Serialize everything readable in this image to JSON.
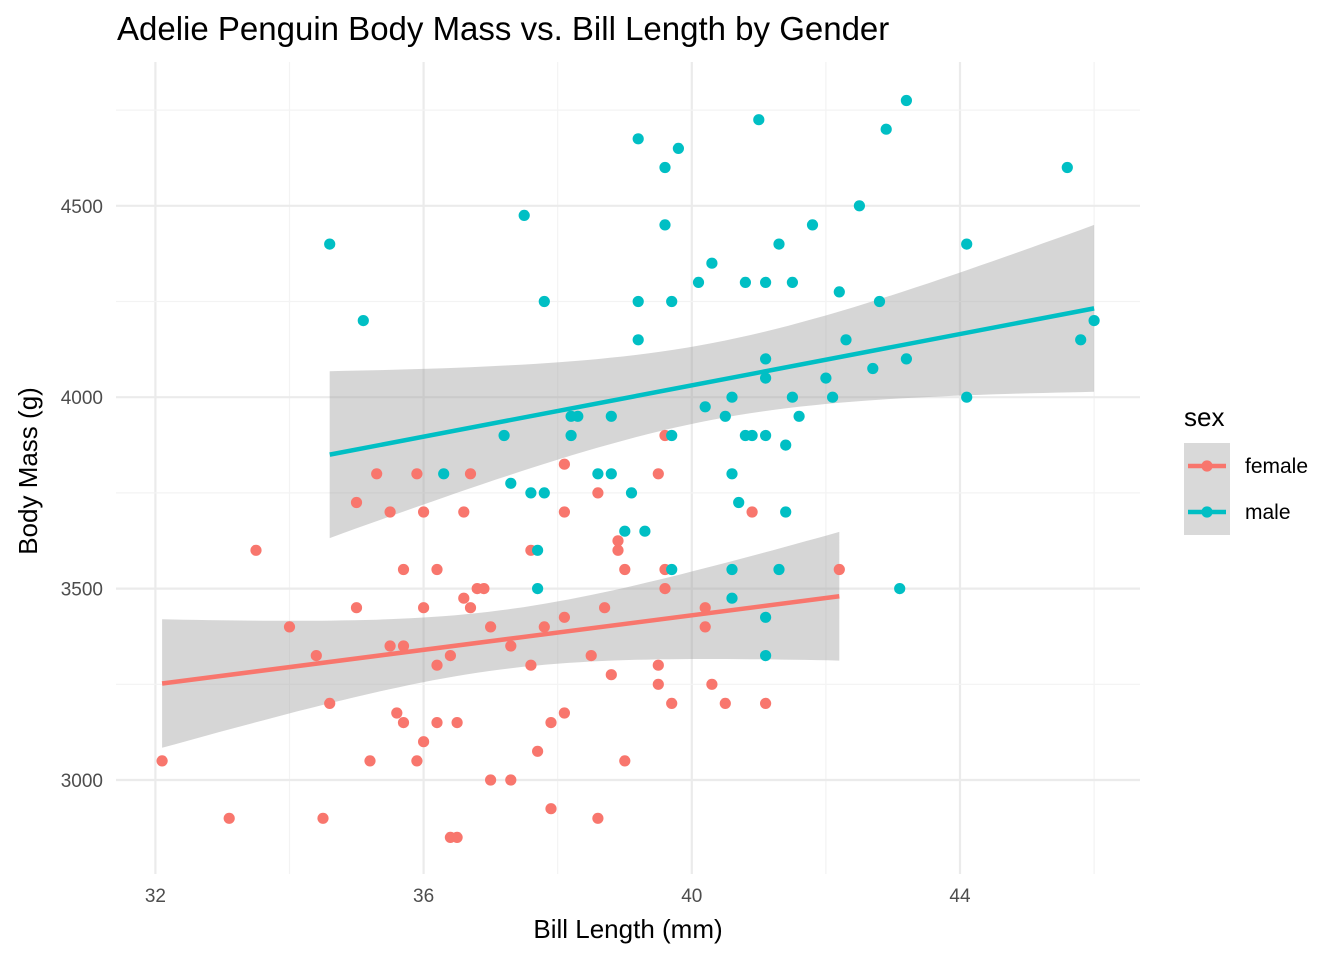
{
  "chart_data": {
    "type": "scatter",
    "title": "Adelie Penguin Body Mass vs. Bill Length by Gender",
    "xlabel": "Bill Length (mm)",
    "ylabel": "Body Mass (g)",
    "xlim": [
      31.9,
      46.6
    ],
    "ylim": [
      2770,
      4820
    ],
    "x_ticks": [
      32,
      36,
      40,
      44
    ],
    "y_ticks": [
      3000,
      3500,
      4000,
      4500
    ],
    "grid": true,
    "legend": {
      "title": "sex",
      "position": "right"
    },
    "series": [
      {
        "name": "female",
        "color": "#F8766D",
        "points": [
          [
            32.1,
            3050
          ],
          [
            33.1,
            2900
          ],
          [
            33.5,
            3600
          ],
          [
            34.0,
            3400
          ],
          [
            34.4,
            3325
          ],
          [
            34.5,
            2900
          ],
          [
            34.6,
            3200
          ],
          [
            35.0,
            3725
          ],
          [
            35.0,
            3450
          ],
          [
            35.2,
            3050
          ],
          [
            35.3,
            3800
          ],
          [
            35.5,
            3700
          ],
          [
            35.5,
            3350
          ],
          [
            35.6,
            3175
          ],
          [
            35.7,
            3550
          ],
          [
            35.7,
            3350
          ],
          [
            35.7,
            3150
          ],
          [
            35.9,
            3800
          ],
          [
            35.9,
            3050
          ],
          [
            36.0,
            3700
          ],
          [
            36.0,
            3450
          ],
          [
            36.0,
            3100
          ],
          [
            36.2,
            3550
          ],
          [
            36.2,
            3300
          ],
          [
            36.2,
            3150
          ],
          [
            36.4,
            3325
          ],
          [
            36.4,
            2850
          ],
          [
            36.5,
            2850
          ],
          [
            36.5,
            3150
          ],
          [
            36.6,
            3700
          ],
          [
            36.6,
            3475
          ],
          [
            36.7,
            3800
          ],
          [
            36.7,
            3450
          ],
          [
            36.8,
            3500
          ],
          [
            36.9,
            3500
          ],
          [
            37.0,
            3400
          ],
          [
            37.0,
            3000
          ],
          [
            37.3,
            3350
          ],
          [
            37.3,
            3000
          ],
          [
            37.6,
            3600
          ],
          [
            37.6,
            3300
          ],
          [
            37.7,
            3075
          ],
          [
            37.8,
            3400
          ],
          [
            37.9,
            3150
          ],
          [
            37.9,
            2925
          ],
          [
            38.1,
            3825
          ],
          [
            38.1,
            3700
          ],
          [
            38.1,
            3425
          ],
          [
            38.1,
            3175
          ],
          [
            38.5,
            3325
          ],
          [
            38.6,
            3750
          ],
          [
            38.6,
            2900
          ],
          [
            38.7,
            3450
          ],
          [
            38.8,
            3275
          ],
          [
            38.9,
            3625
          ],
          [
            38.9,
            3600
          ],
          [
            39.0,
            3550
          ],
          [
            39.0,
            3050
          ],
          [
            39.5,
            3800
          ],
          [
            39.5,
            3300
          ],
          [
            39.5,
            3250
          ],
          [
            39.6,
            3900
          ],
          [
            39.6,
            3550
          ],
          [
            39.6,
            3500
          ],
          [
            39.7,
            3200
          ],
          [
            40.2,
            3450
          ],
          [
            40.2,
            3400
          ],
          [
            40.3,
            3250
          ],
          [
            40.5,
            3200
          ],
          [
            40.9,
            3700
          ],
          [
            41.1,
            3200
          ],
          [
            42.2,
            3550
          ]
        ],
        "fit": {
          "x": [
            32.1,
            42.2
          ],
          "y": [
            3252,
            3480
          ],
          "ci_lower": [
            3085,
            3318
          ],
          "ci_upper": [
            3420,
            3645
          ]
        }
      },
      {
        "name": "male",
        "color": "#00BFC4",
        "points": [
          [
            34.6,
            4400
          ],
          [
            35.1,
            4200
          ],
          [
            36.3,
            3800
          ],
          [
            37.2,
            3900
          ],
          [
            37.3,
            3775
          ],
          [
            37.5,
            4475
          ],
          [
            37.6,
            3750
          ],
          [
            37.7,
            3600
          ],
          [
            37.7,
            3500
          ],
          [
            37.8,
            4250
          ],
          [
            37.8,
            3750
          ],
          [
            38.2,
            3950
          ],
          [
            38.2,
            3900
          ],
          [
            38.3,
            3950
          ],
          [
            38.6,
            3800
          ],
          [
            38.8,
            3950
          ],
          [
            38.8,
            3800
          ],
          [
            39.0,
            3650
          ],
          [
            39.1,
            3750
          ],
          [
            39.2,
            4675
          ],
          [
            39.2,
            4250
          ],
          [
            39.2,
            4150
          ],
          [
            39.3,
            3650
          ],
          [
            39.6,
            4600
          ],
          [
            39.6,
            4450
          ],
          [
            39.7,
            4250
          ],
          [
            39.7,
            3900
          ],
          [
            39.7,
            3550
          ],
          [
            39.8,
            4650
          ],
          [
            40.1,
            4300
          ],
          [
            40.2,
            3975
          ],
          [
            40.3,
            4350
          ],
          [
            40.5,
            3950
          ],
          [
            40.6,
            4000
          ],
          [
            40.6,
            3800
          ],
          [
            40.6,
            3550
          ],
          [
            40.6,
            3475
          ],
          [
            40.7,
            3725
          ],
          [
            40.8,
            4300
          ],
          [
            40.8,
            3900
          ],
          [
            40.9,
            3900
          ],
          [
            41.0,
            4725
          ],
          [
            41.1,
            4300
          ],
          [
            41.1,
            4100
          ],
          [
            41.1,
            4050
          ],
          [
            41.1,
            3900
          ],
          [
            41.1,
            3425
          ],
          [
            41.1,
            3325
          ],
          [
            41.3,
            4400
          ],
          [
            41.3,
            3550
          ],
          [
            41.4,
            3875
          ],
          [
            41.4,
            3700
          ],
          [
            41.5,
            4300
          ],
          [
            41.5,
            4000
          ],
          [
            41.6,
            3950
          ],
          [
            41.8,
            4450
          ],
          [
            42.0,
            4050
          ],
          [
            42.1,
            4000
          ],
          [
            42.2,
            4275
          ],
          [
            42.3,
            4150
          ],
          [
            42.5,
            4500
          ],
          [
            42.7,
            4075
          ],
          [
            42.8,
            4250
          ],
          [
            42.9,
            4700
          ],
          [
            43.1,
            3500
          ],
          [
            43.2,
            4775
          ],
          [
            43.2,
            4100
          ],
          [
            44.1,
            4400
          ],
          [
            44.1,
            4000
          ],
          [
            45.6,
            4600
          ],
          [
            45.8,
            4150
          ],
          [
            46.0,
            4200
          ]
        ],
        "fit": {
          "x": [
            34.6,
            46.0
          ],
          "y": [
            3850,
            4232
          ],
          "ci_lower": [
            3630,
            4020
          ],
          "ci_upper": [
            4068,
            4445
          ]
        }
      }
    ]
  }
}
